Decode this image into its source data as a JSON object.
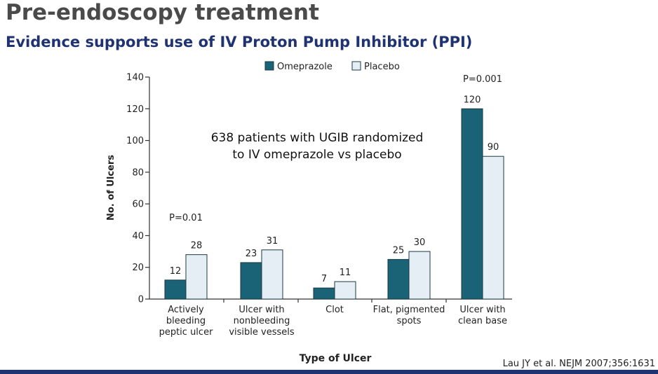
{
  "slide": {
    "title": "Pre-endoscopy treatment",
    "subtitle": "Evidence supports use of IV Proton Pump Inhibitor (PPI)",
    "citation": "Lau JY et al. NEJM 2007;356:1631"
  },
  "chart_data": {
    "type": "bar",
    "xlabel": "Type of Ulcer",
    "ylabel": "No. of Ulcers",
    "ylim": [
      0,
      140
    ],
    "yticks": [
      0,
      20,
      40,
      60,
      80,
      100,
      120,
      140
    ],
    "categories": [
      [
        "Actively",
        "bleeding",
        "peptic ulcer"
      ],
      [
        "Ulcer with",
        "nonbleeding",
        "visible vessels"
      ],
      [
        "Clot"
      ],
      [
        "Flat, pigmented",
        "spots"
      ],
      [
        "Ulcer with",
        "clean base"
      ]
    ],
    "series": [
      {
        "name": "Omeprazole",
        "color": "#1a6275",
        "values": [
          12,
          23,
          7,
          25,
          120
        ]
      },
      {
        "name": "Placebo",
        "color": "#e5eef4",
        "values": [
          28,
          31,
          11,
          30,
          90
        ]
      }
    ],
    "annotations": [
      {
        "category_index": 0,
        "text": "P=0.01"
      },
      {
        "category_index": 4,
        "text": "P=0.001"
      }
    ],
    "note_lines": [
      "638 patients with UGIB randomized",
      "to IV omeprazole vs placebo"
    ],
    "grid": false,
    "legend": "top-center"
  }
}
